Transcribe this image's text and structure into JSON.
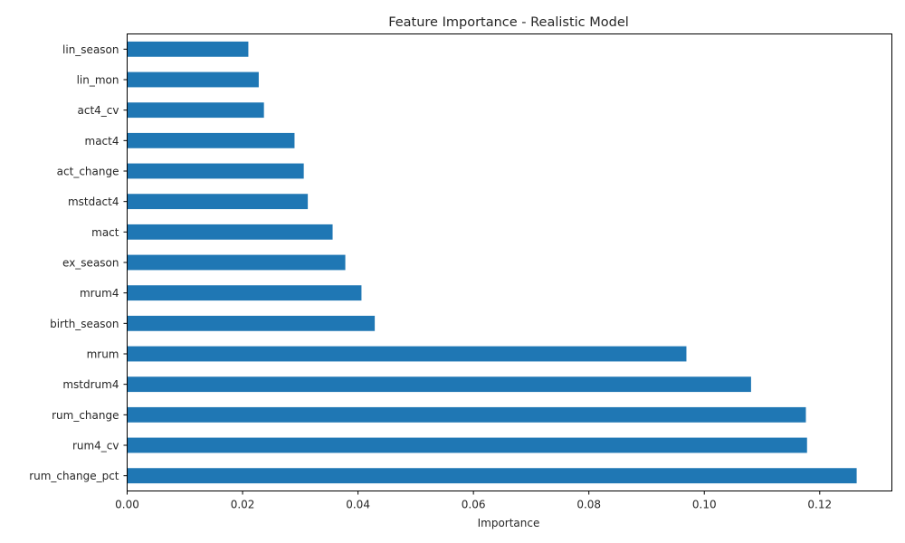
{
  "chart_data": {
    "type": "bar",
    "orientation": "horizontal",
    "title": "Feature Importance - Realistic Model",
    "xlabel": "Importance",
    "ylabel": "",
    "xlim": [
      0,
      0.1325
    ],
    "xticks": [
      "0.00",
      "0.02",
      "0.04",
      "0.06",
      "0.08",
      "0.10",
      "0.12"
    ],
    "grid": false,
    "color": "#1f77b4",
    "categories": [
      "lin_season",
      "lin_mon",
      "act4_cv",
      "mact4",
      "act_change",
      "mstdact4",
      "mact",
      "ex_season",
      "mrum4",
      "birth_season",
      "mrum",
      "mstdrum4",
      "rum_change",
      "rum4_cv",
      "rum_change_pct"
    ],
    "values": [
      0.021,
      0.0228,
      0.0237,
      0.029,
      0.0306,
      0.0313,
      0.0356,
      0.0378,
      0.0406,
      0.0429,
      0.0969,
      0.1081,
      0.1176,
      0.1178,
      0.1264
    ]
  }
}
